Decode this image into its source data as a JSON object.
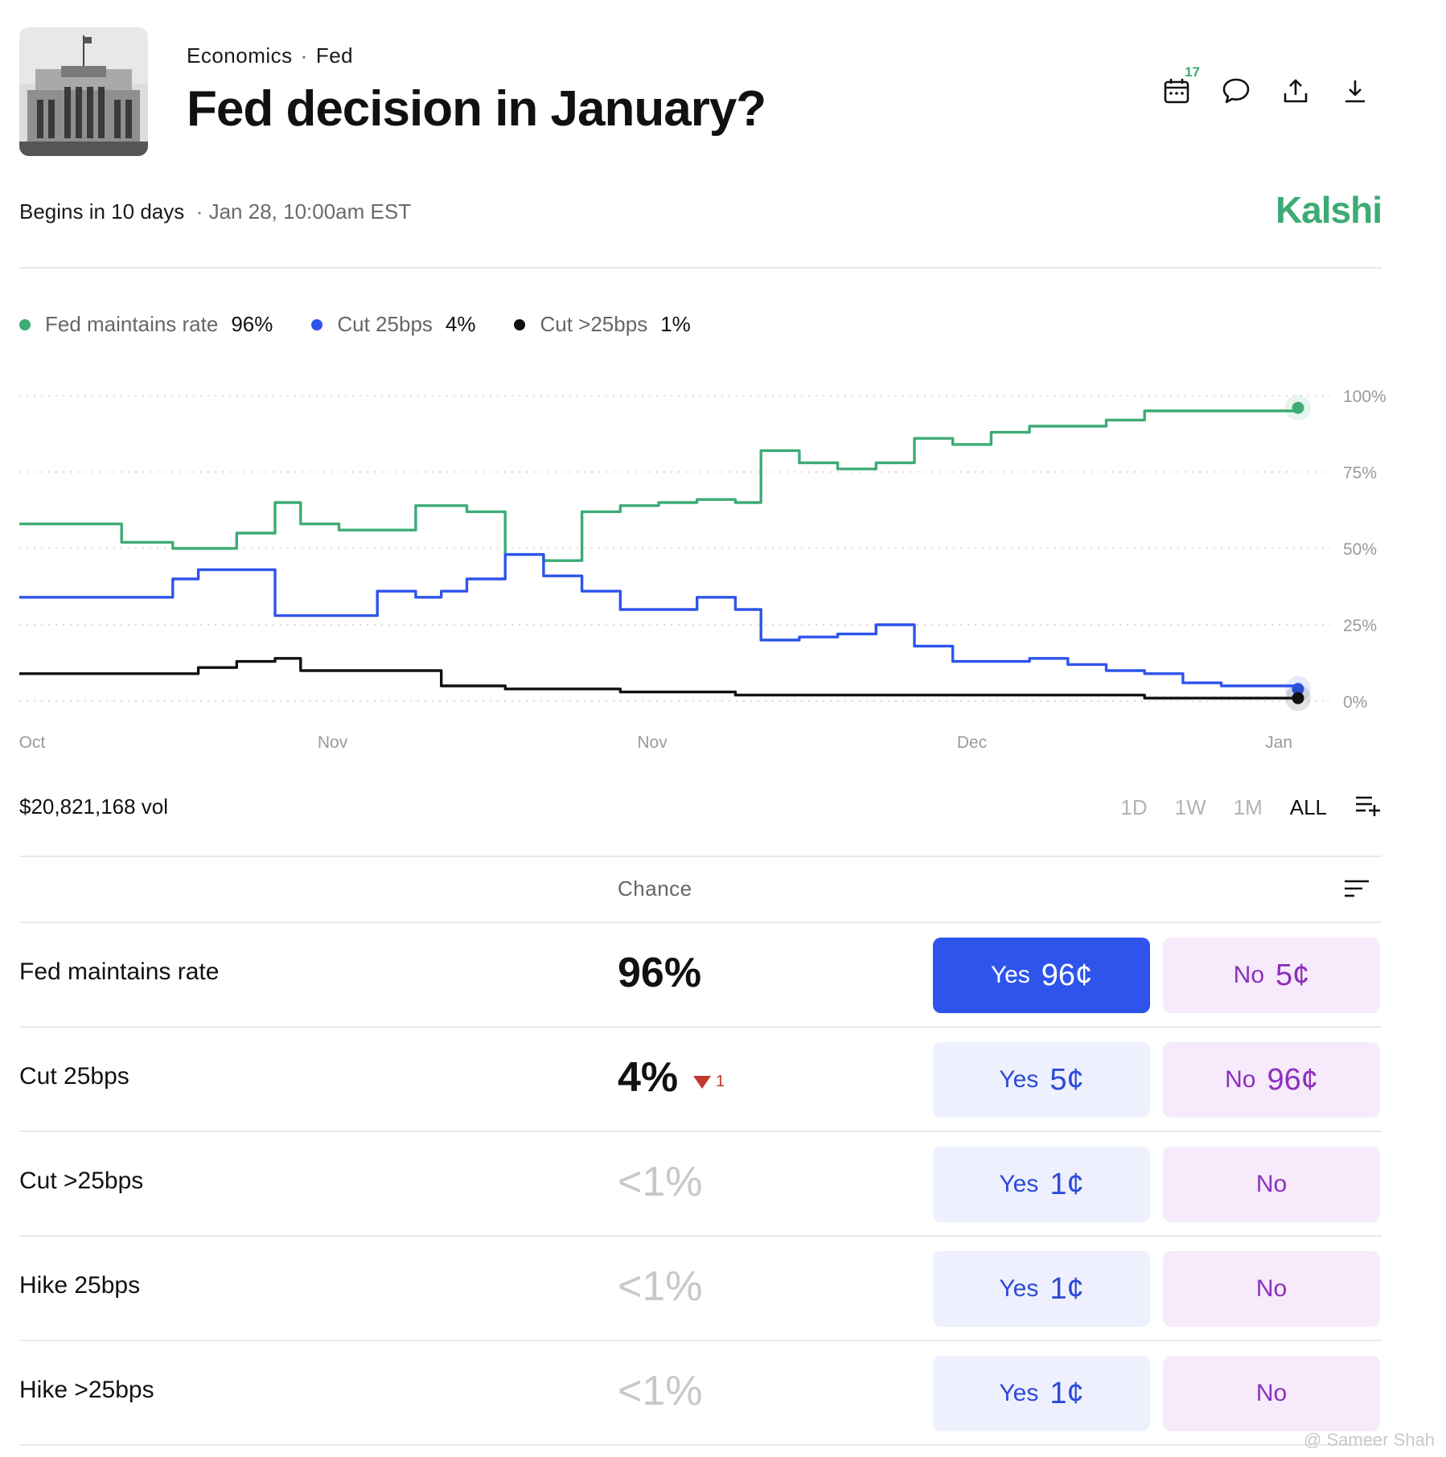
{
  "header": {
    "breadcrumb": [
      "Economics",
      "Fed"
    ],
    "title": "Fed decision in January?",
    "calendar_badge": "17"
  },
  "meta": {
    "begins": "Begins in 10 days",
    "date": "Jan 28, 10:00am EST",
    "brand": "Kalshi"
  },
  "legend": [
    {
      "label": "Fed maintains rate",
      "value": "96%",
      "color": "#3dab74"
    },
    {
      "label": "Cut 25bps",
      "value": "4%",
      "color": "#2f54eb"
    },
    {
      "label": "Cut >25bps",
      "value": "1%",
      "color": "#111111"
    }
  ],
  "chart_data": {
    "type": "line",
    "y_ticks": [
      "100%",
      "75%",
      "50%",
      "25%",
      "0%"
    ],
    "ylim": [
      0,
      100
    ],
    "x_tick_labels": [
      "Oct",
      "Nov",
      "Nov",
      "Dec",
      "Jan"
    ],
    "x": [
      0,
      3,
      5,
      8,
      12,
      14,
      17,
      20,
      22,
      25,
      28,
      31,
      33,
      35,
      38,
      41,
      44,
      47,
      50,
      53,
      56,
      58,
      61,
      64,
      67,
      70,
      73,
      76,
      79,
      82,
      85,
      88,
      91,
      94,
      97,
      100
    ],
    "series": [
      {
        "name": "Fed maintains rate",
        "color": "#3dab74",
        "values": [
          58,
          58,
          58,
          52,
          50,
          50,
          55,
          65,
          58,
          56,
          56,
          64,
          64,
          62,
          48,
          46,
          62,
          64,
          65,
          66,
          65,
          82,
          78,
          76,
          78,
          86,
          84,
          88,
          90,
          90,
          92,
          95,
          95,
          95,
          95,
          96
        ]
      },
      {
        "name": "Cut 25bps",
        "color": "#2f54eb",
        "values": [
          34,
          34,
          34,
          34,
          40,
          43,
          43,
          28,
          28,
          28,
          36,
          34,
          36,
          40,
          48,
          41,
          36,
          30,
          30,
          34,
          30,
          20,
          21,
          22,
          25,
          18,
          13,
          13,
          14,
          12,
          10,
          9,
          6,
          5,
          5,
          4
        ]
      },
      {
        "name": "Cut >25bps",
        "color": "#111111",
        "values": [
          9,
          9,
          9,
          9,
          9,
          11,
          13,
          14,
          10,
          10,
          10,
          10,
          5,
          5,
          4,
          4,
          4,
          3,
          3,
          3,
          2,
          2,
          2,
          2,
          2,
          2,
          2,
          2,
          2,
          2,
          2,
          1,
          1,
          1,
          1,
          1
        ]
      }
    ]
  },
  "footer": {
    "volume": "$20,821,168 vol",
    "ranges": [
      "1D",
      "1W",
      "1M",
      "ALL"
    ]
  },
  "table": {
    "header": "Chance",
    "rows": [
      {
        "label": "Fed maintains rate",
        "chance": "96%",
        "yes_label": "Yes",
        "yes_price": "96¢",
        "no_label": "No",
        "no_price": "5¢",
        "delta": ""
      },
      {
        "label": "Cut 25bps",
        "chance": "4%",
        "yes_label": "Yes",
        "yes_price": "5¢",
        "no_label": "No",
        "no_price": "96¢",
        "delta": "1"
      },
      {
        "label": "Cut >25bps",
        "chance": "<1%",
        "yes_label": "Yes",
        "yes_price": "1¢",
        "no_label": "No",
        "no_price": "",
        "delta": ""
      },
      {
        "label": "Hike 25bps",
        "chance": "<1%",
        "yes_label": "Yes",
        "yes_price": "1¢",
        "no_label": "No",
        "no_price": "",
        "delta": ""
      },
      {
        "label": "Hike >25bps",
        "chance": "<1%",
        "yes_label": "Yes",
        "yes_price": "1¢",
        "no_label": "No",
        "no_price": "",
        "delta": ""
      }
    ]
  },
  "watermark": "@ Sameer Shah"
}
